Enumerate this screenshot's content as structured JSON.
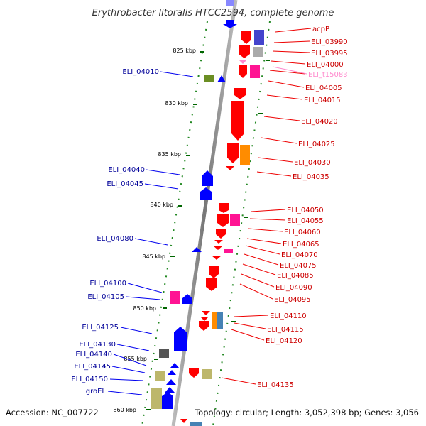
{
  "title": "Erythrobacter litoralis HTCC2594, complete genome",
  "footer": {
    "accession": "Accession: NC_007722",
    "summary": "Topology: circular; Length: 3,052,398 bp; Genes: 3,056"
  },
  "kbp_ticks": [
    "825 kbp",
    "830 kbp",
    "835 kbp",
    "840 kbp",
    "845 kbp",
    "850 kbp",
    "855 kbp",
    "860 kbp"
  ],
  "left_labels": [
    "ELI_04010",
    "ELI_04040",
    "ELI_04045",
    "ELI_04080",
    "ELI_04100",
    "ELI_04105",
    "ELI_04125",
    "ELI_04130",
    "ELI_04140",
    "ELI_04145",
    "ELI_04150",
    "groEL"
  ],
  "right_labels": [
    "acpP",
    "ELI_03990",
    "ELI_03995",
    "ELI_04000",
    "ELI_t15083",
    "ELI_04005",
    "ELI_04015",
    "ELI_04020",
    "ELI_04025",
    "ELI_04030",
    "ELI_04035",
    "ELI_04050",
    "ELI_04055",
    "ELI_04060",
    "ELI_04065",
    "ELI_04070",
    "ELI_04075",
    "ELI_04085",
    "ELI_04090",
    "ELI_04095",
    "ELI_04110",
    "ELI_04115",
    "ELI_04120",
    "ELI_04135"
  ],
  "colors": {
    "forward_strand": "#ff0000",
    "reverse_strand": "#0000ff",
    "trna": "#ff88cc",
    "tick": "#006600",
    "backbone": "#888888",
    "left_label": "#000099",
    "right_label": "#cc0000"
  }
}
